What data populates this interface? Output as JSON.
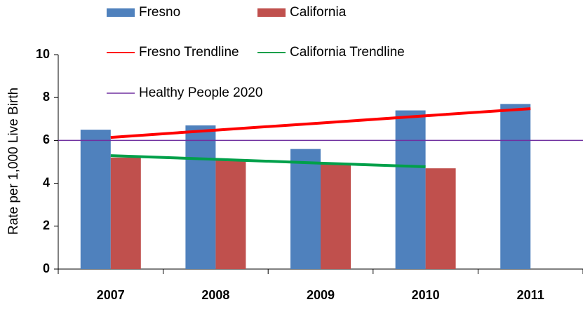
{
  "chart_data": {
    "type": "bar",
    "y_label": "Rate per 1,000 Live Birth",
    "categories": [
      "2007",
      "2008",
      "2009",
      "2010",
      "2011"
    ],
    "series": [
      {
        "name": "Fresno",
        "color": "#4f81bd",
        "values": [
          6.5,
          6.7,
          5.6,
          7.4,
          7.7
        ]
      },
      {
        "name": "California",
        "color": "#c0504d",
        "values": [
          5.2,
          5.1,
          4.9,
          4.7,
          null
        ]
      }
    ],
    "trendlines": [
      {
        "name": "Fresno Trendline",
        "color": "#ff0000",
        "values": [
          6.14,
          6.48,
          6.81,
          7.15,
          7.48
        ]
      },
      {
        "name": "California Trendline",
        "color": "#00a04a",
        "values": [
          5.29,
          5.12,
          4.94,
          4.77,
          null
        ]
      }
    ],
    "reference_line": {
      "name": "Healthy People 2020",
      "color": "#7030a0",
      "value": 6
    },
    "ylim": [
      0,
      10
    ],
    "yticks": [
      0,
      2,
      4,
      6,
      8,
      10
    ],
    "grid": false
  }
}
